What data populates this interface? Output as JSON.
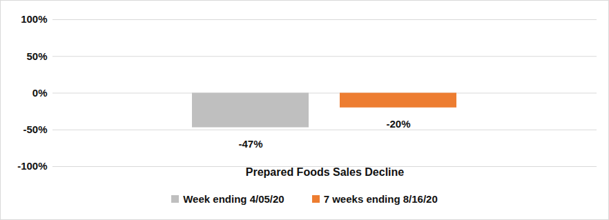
{
  "chart_data": {
    "type": "bar",
    "categories": [
      "Prepared Foods Sales Decline"
    ],
    "series": [
      {
        "name": "Week ending 4/05/20",
        "color": "#bfbfbf",
        "values": [
          -47
        ],
        "value_labels": [
          "-47%"
        ]
      },
      {
        "name": "7 weeks ending 8/16/20",
        "color": "#ed7d31",
        "values": [
          -20
        ],
        "value_labels": [
          "-20%"
        ]
      }
    ],
    "ylim": [
      -100,
      100
    ],
    "yticks": [
      {
        "value": -100,
        "label": "-100%"
      },
      {
        "value": -50,
        "label": "-50%"
      },
      {
        "value": 0,
        "label": "0%"
      },
      {
        "value": 50,
        "label": "50%"
      },
      {
        "value": 100,
        "label": "100%"
      }
    ],
    "grid": true,
    "legend": "bottom",
    "data_labels": true
  }
}
